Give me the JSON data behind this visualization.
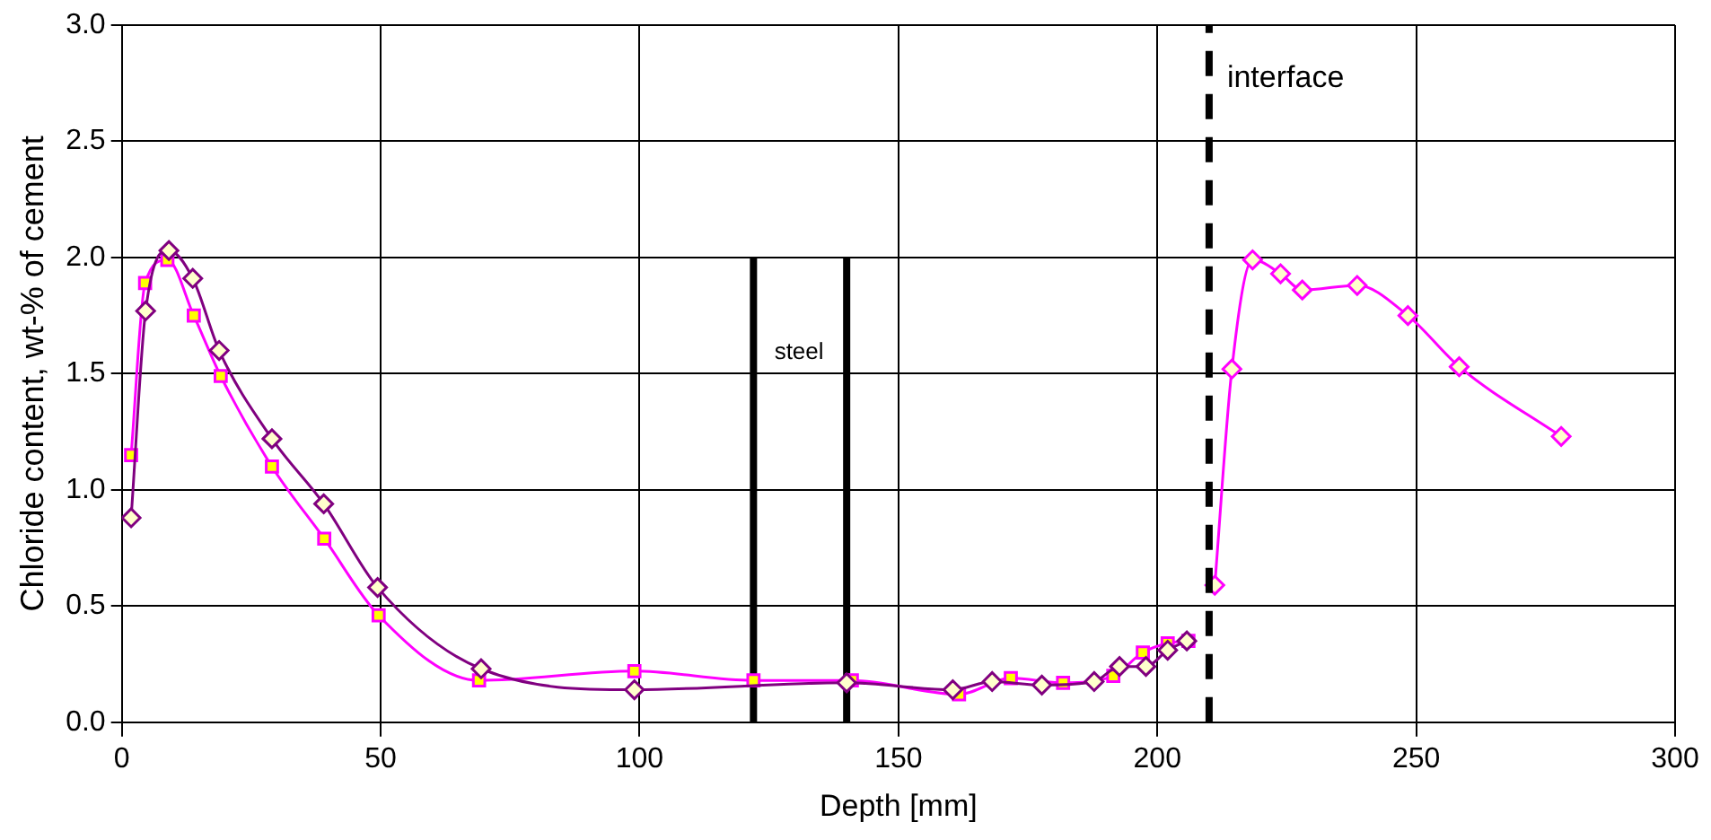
{
  "chart_data": {
    "type": "line",
    "xlabel": "Depth [mm]",
    "ylabel": "Chloride content, wt-% of cement",
    "xlim": [
      0,
      300
    ],
    "xticks": [
      0,
      50,
      100,
      150,
      200,
      250,
      300
    ],
    "ylim": [
      0,
      3
    ],
    "yticks": [
      {
        "value": 0,
        "label": "0.0"
      },
      {
        "value": 0.5,
        "label": "0.5"
      },
      {
        "value": 1,
        "label": "1.0"
      },
      {
        "value": 1.5,
        "label": "1.5"
      },
      {
        "value": 2,
        "label": "2.0"
      },
      {
        "value": 2.5,
        "label": "2.5"
      },
      {
        "value": 3,
        "label": "3.0"
      }
    ],
    "grid": true,
    "legend": false,
    "series": [
      {
        "color": "#800080",
        "marker": "diamond",
        "x": [
          1.8,
          4.6,
          9.1,
          13.7,
          18.8,
          29,
          39,
          49.4,
          69.4,
          99,
          140,
          160.5,
          168.1,
          177.7,
          187.8,
          192.7,
          197.8,
          202,
          205.7
        ],
        "values": [
          0.88,
          1.77,
          2.03,
          1.91,
          1.6,
          1.22,
          0.94,
          0.58,
          0.23,
          0.14,
          0.17,
          0.14,
          0.175,
          0.16,
          0.175,
          0.24,
          0.24,
          0.31,
          0.35
        ]
      },
      {
        "color": "#ff00ff",
        "marker": "square",
        "x": [
          1.8,
          4.5,
          8.8,
          13.9,
          19.1,
          29,
          39.1,
          49.6,
          69,
          99,
          122,
          141,
          161.7,
          171.7,
          181.8,
          191.5,
          197.2,
          202,
          206
        ],
        "values": [
          1.15,
          1.89,
          1.99,
          1.75,
          1.49,
          1.1,
          0.79,
          0.46,
          0.18,
          0.22,
          0.18,
          0.18,
          0.12,
          0.19,
          0.17,
          0.2,
          0.3,
          0.34,
          0.35
        ]
      },
      {
        "color": "#ff00ff",
        "marker": "diamond",
        "x": [
          211.1,
          214.4,
          218.4,
          223.8,
          228,
          238.6,
          248.4,
          258.3,
          278
        ],
        "values": [
          0.59,
          1.52,
          1.99,
          1.93,
          1.86,
          1.88,
          1.75,
          1.53,
          1.23
        ]
      },
      {
        "color": "#000000",
        "marker": "none",
        "x": [
          122,
          122
        ],
        "values": [
          0,
          2
        ]
      },
      {
        "color": "#000000",
        "marker": "none",
        "x": [
          140,
          140
        ],
        "values": [
          0,
          2
        ]
      }
    ],
    "ref_lines": [
      {
        "axis": "x",
        "value": 210,
        "label": "interface",
        "color": "#000000",
        "line_style": "dashed"
      }
    ],
    "annotations": [
      "steel"
    ]
  }
}
